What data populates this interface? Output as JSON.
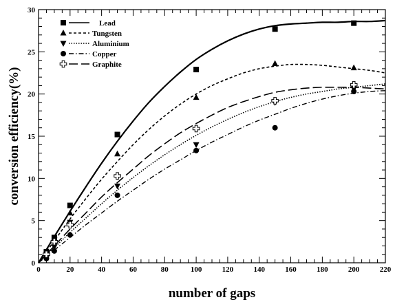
{
  "chart_data": {
    "type": "scatter",
    "title": "",
    "xlabel": "number of gaps",
    "ylabel": "conversion efficiency(%)",
    "xlim": [
      0,
      220
    ],
    "ylim": [
      0,
      30
    ],
    "xticks": [
      0,
      20,
      40,
      60,
      80,
      100,
      120,
      140,
      160,
      180,
      200,
      220
    ],
    "yticks": [
      0,
      5,
      10,
      15,
      20,
      25,
      30
    ],
    "grid": false,
    "legend_position": "top-left",
    "series": [
      {
        "name": "Lead",
        "marker": "square",
        "line_style": "solid",
        "x": [
          5,
          10,
          20,
          50,
          100,
          150,
          200
        ],
        "y": [
          1.3,
          3.0,
          6.8,
          15.2,
          22.9,
          27.7,
          28.4
        ],
        "fit_x": [
          0,
          10,
          20,
          30,
          40,
          50,
          60,
          70,
          80,
          90,
          100,
          110,
          120,
          130,
          140,
          150,
          160,
          170,
          180,
          190,
          200,
          210,
          220
        ],
        "fit_y": [
          0,
          3.1,
          6.1,
          9.0,
          11.8,
          14.4,
          16.8,
          19.0,
          20.9,
          22.6,
          24.1,
          25.3,
          26.3,
          27.1,
          27.7,
          28.1,
          28.3,
          28.4,
          28.5,
          28.5,
          28.6,
          28.6,
          28.7
        ]
      },
      {
        "name": "Tungsten",
        "marker": "triangle-up",
        "line_style": "dashed",
        "x": [
          5,
          10,
          20,
          50,
          100,
          150,
          200
        ],
        "y": [
          1.0,
          2.6,
          5.9,
          12.9,
          19.6,
          23.6,
          23.1
        ],
        "fit_x": [
          0,
          10,
          20,
          30,
          40,
          50,
          60,
          70,
          80,
          90,
          100,
          110,
          120,
          130,
          140,
          150,
          160,
          170,
          180,
          190,
          200,
          210,
          220
        ],
        "fit_y": [
          0,
          2.6,
          5.2,
          7.6,
          9.9,
          12.0,
          14.0,
          15.8,
          17.4,
          18.8,
          20.0,
          21.0,
          21.8,
          22.5,
          23.0,
          23.3,
          23.5,
          23.5,
          23.4,
          23.2,
          23.0,
          22.8,
          22.5
        ]
      },
      {
        "name": "Aluminium",
        "marker": "triangle-down",
        "line_style": "dotted",
        "x": [
          5,
          10,
          20,
          50,
          100,
          150,
          200
        ],
        "y": [
          0.8,
          1.9,
          4.8,
          9.1,
          14.0,
          19.0,
          20.6
        ],
        "fit_x": [
          0,
          10,
          20,
          30,
          40,
          50,
          60,
          70,
          80,
          90,
          100,
          110,
          120,
          130,
          140,
          150,
          160,
          170,
          180,
          190,
          200,
          210,
          220
        ],
        "fit_y": [
          0,
          1.8,
          3.6,
          5.3,
          7.0,
          8.6,
          10.1,
          11.5,
          12.8,
          14.0,
          15.1,
          16.1,
          17.0,
          17.8,
          18.5,
          19.1,
          19.6,
          20.0,
          20.3,
          20.6,
          20.8,
          21.0,
          21.2
        ]
      },
      {
        "name": "Copper",
        "marker": "circle",
        "line_style": "dash-dot",
        "x": [
          5,
          10,
          20,
          50,
          100,
          150,
          200
        ],
        "y": [
          0.5,
          1.4,
          3.3,
          8.0,
          13.3,
          16.0,
          20.3
        ],
        "fit_x": [
          0,
          10,
          20,
          30,
          40,
          50,
          60,
          70,
          80,
          90,
          100,
          110,
          120,
          130,
          140,
          150,
          160,
          170,
          180,
          190,
          200,
          210,
          220
        ],
        "fit_y": [
          0,
          1.5,
          3.0,
          4.5,
          5.9,
          7.3,
          8.6,
          9.9,
          11.1,
          12.2,
          13.3,
          14.3,
          15.2,
          16.1,
          16.9,
          17.6,
          18.3,
          18.9,
          19.4,
          19.8,
          20.1,
          20.3,
          20.4
        ]
      },
      {
        "name": "Graphite",
        "marker": "open-cross",
        "line_style": "long-dash",
        "x": [
          5,
          10,
          20,
          50,
          100,
          150,
          200
        ],
        "y": [
          1.0,
          2.5,
          4.5,
          10.3,
          15.9,
          19.2,
          21.1
        ],
        "fit_x": [
          0,
          10,
          20,
          30,
          40,
          50,
          60,
          70,
          80,
          90,
          100,
          110,
          120,
          130,
          140,
          150,
          160,
          170,
          180,
          190,
          200,
          210,
          220
        ],
        "fit_y": [
          0,
          2.0,
          4.0,
          5.9,
          7.8,
          9.5,
          11.1,
          12.7,
          14.1,
          15.4,
          16.5,
          17.5,
          18.4,
          19.1,
          19.7,
          20.2,
          20.5,
          20.7,
          20.8,
          20.8,
          20.8,
          20.7,
          20.6
        ]
      }
    ]
  }
}
